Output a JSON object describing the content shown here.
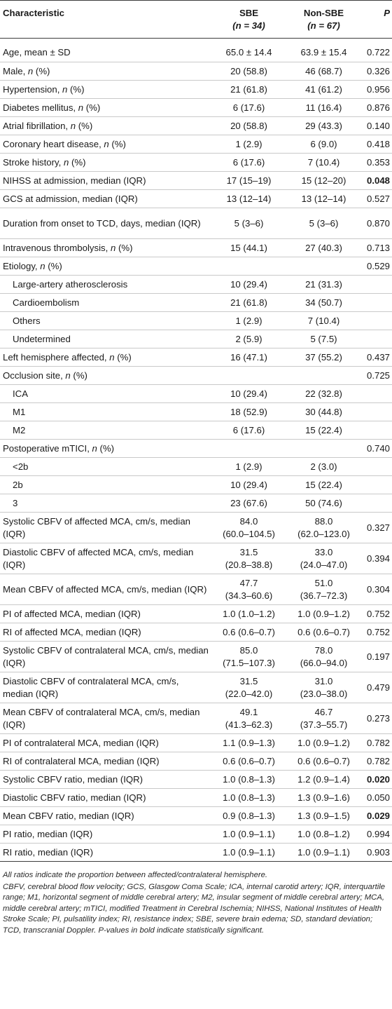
{
  "header": {
    "characteristic": "Characteristic",
    "sbe": "SBE",
    "sbe_n": "(n = 34)",
    "nonsbe": "Non-SBE",
    "nonsbe_n": "(n = 67)",
    "p": "P"
  },
  "rows": [
    {
      "label": "Age, mean ± SD",
      "sbe": "65.0 ± 14.4",
      "nonsbe": "63.9 ± 15.4",
      "p": "0.722"
    },
    {
      "label": "Male, n (%)",
      "sbe": "20 (58.8)",
      "nonsbe": "46 (68.7)",
      "p": "0.326"
    },
    {
      "label": "Hypertension, n (%)",
      "sbe": "21 (61.8)",
      "nonsbe": "41 (61.2)",
      "p": "0.956"
    },
    {
      "label": "Diabetes mellitus, n (%)",
      "sbe": "6 (17.6)",
      "nonsbe": "11 (16.4)",
      "p": "0.876"
    },
    {
      "label": "Atrial fibrillation, n (%)",
      "sbe": "20 (58.8)",
      "nonsbe": "29 (43.3)",
      "p": "0.140"
    },
    {
      "label": "Coronary heart disease, n (%)",
      "sbe": "1 (2.9)",
      "nonsbe": "6 (9.0)",
      "p": "0.418"
    },
    {
      "label": "Stroke history, n (%)",
      "sbe": "6 (17.6)",
      "nonsbe": "7 (10.4)",
      "p": "0.353"
    },
    {
      "label": "NIHSS at admission, median (IQR)",
      "sbe": "17 (15–19)",
      "nonsbe": "15 (12–20)",
      "p": "0.048"
    },
    {
      "label": "GCS at admission, median (IQR)",
      "sbe": "13 (12–14)",
      "nonsbe": "13 (12–14)",
      "p": "0.527"
    },
    {
      "label": "Duration from onset to TCD, days, median (IQR)",
      "sbe": "5 (3–6)",
      "nonsbe": "5 (3–6)",
      "p": "0.870"
    },
    {
      "label": "Intravenous thrombolysis, n (%)",
      "sbe": "15 (44.1)",
      "nonsbe": "27 (40.3)",
      "p": "0.713"
    },
    {
      "label": "Etiology, n (%)",
      "sbe": "",
      "nonsbe": "",
      "p": "0.529"
    },
    {
      "label": "Large-artery atherosclerosis",
      "sbe": "10 (29.4)",
      "nonsbe": "21 (31.3)",
      "p": ""
    },
    {
      "label": "Cardioembolism",
      "sbe": "21 (61.8)",
      "nonsbe": "34 (50.7)",
      "p": ""
    },
    {
      "label": "Others",
      "sbe": "1 (2.9)",
      "nonsbe": "7 (10.4)",
      "p": ""
    },
    {
      "label": "Undetermined",
      "sbe": "2 (5.9)",
      "nonsbe": "5 (7.5)",
      "p": ""
    },
    {
      "label": "Left hemisphere affected, n (%)",
      "sbe": "16 (47.1)",
      "nonsbe": "37 (55.2)",
      "p": "0.437"
    },
    {
      "label": "Occlusion site, n (%)",
      "sbe": "",
      "nonsbe": "",
      "p": "0.725"
    },
    {
      "label": "ICA",
      "sbe": "10 (29.4)",
      "nonsbe": "22 (32.8)",
      "p": ""
    },
    {
      "label": "M1",
      "sbe": "18 (52.9)",
      "nonsbe": "30 (44.8)",
      "p": ""
    },
    {
      "label": "M2",
      "sbe": "6 (17.6)",
      "nonsbe": "15 (22.4)",
      "p": ""
    },
    {
      "label": "Postoperative mTICI, n (%)",
      "sbe": "",
      "nonsbe": "",
      "p": "0.740"
    },
    {
      "label": "<2b",
      "sbe": "1 (2.9)",
      "nonsbe": "2 (3.0)",
      "p": ""
    },
    {
      "label": "2b",
      "sbe": "10 (29.4)",
      "nonsbe": "15 (22.4)",
      "p": ""
    },
    {
      "label": "3",
      "sbe": "23 (67.6)",
      "nonsbe": "50 (74.6)",
      "p": ""
    },
    {
      "label": "Systolic CBFV of affected MCA, cm/s, median (IQR)",
      "sbe_a": "84.0",
      "sbe_b": "(60.0–104.5)",
      "nonsbe_a": "88.0",
      "nonsbe_b": "(62.0–123.0)",
      "p": "0.327"
    },
    {
      "label": "Diastolic CBFV of affected MCA, cm/s, median (IQR)",
      "sbe_a": "31.5",
      "sbe_b": "(20.8–38.8)",
      "nonsbe_a": "33.0",
      "nonsbe_b": "(24.0–47.0)",
      "p": "0.394"
    },
    {
      "label": "Mean CBFV of affected MCA, cm/s, median (IQR)",
      "sbe_a": "47.7",
      "sbe_b": "(34.3–60.6)",
      "nonsbe_a": "51.0",
      "nonsbe_b": "(36.7–72.3)",
      "p": "0.304"
    },
    {
      "label": "PI of affected MCA, median (IQR)",
      "sbe": "1.0 (1.0–1.2)",
      "nonsbe": "1.0 (0.9–1.2)",
      "p": "0.752"
    },
    {
      "label": "RI of affected MCA, median (IQR)",
      "sbe": "0.6 (0.6–0.7)",
      "nonsbe": "0.6 (0.6–0.7)",
      "p": "0.752"
    },
    {
      "label": "Systolic CBFV of contralateral MCA, cm/s, median (IQR)",
      "sbe_a": "85.0",
      "sbe_b": "(71.5–107.3)",
      "nonsbe_a": "78.0",
      "nonsbe_b": "(66.0–94.0)",
      "p": "0.197"
    },
    {
      "label": "Diastolic CBFV of contralateral MCA, cm/s, median (IQR)",
      "sbe_a": "31.5",
      "sbe_b": "(22.0–42.0)",
      "nonsbe_a": "31.0",
      "nonsbe_b": "(23.0–38.0)",
      "p": "0.479"
    },
    {
      "label": "Mean CBFV of contralateral MCA, cm/s, median (IQR)",
      "sbe_a": "49.1",
      "sbe_b": "(41.3–62.3)",
      "nonsbe_a": "46.7",
      "nonsbe_b": "(37.3–55.7)",
      "p": "0.273"
    },
    {
      "label": "PI of contralateral MCA, median (IQR)",
      "sbe": "1.1 (0.9–1.3)",
      "nonsbe": "1.0 (0.9–1.2)",
      "p": "0.782"
    },
    {
      "label": "RI of contralateral MCA, median (IQR)",
      "sbe": "0.6 (0.6–0.7)",
      "nonsbe": "0.6 (0.6–0.7)",
      "p": "0.782"
    },
    {
      "label": "Systolic CBFV ratio, median (IQR)",
      "sbe": "1.0 (0.8–1.3)",
      "nonsbe": "1.2 (0.9–1.4)",
      "p": "0.020"
    },
    {
      "label": "Diastolic CBFV ratio, median (IQR)",
      "sbe": "1.0 (0.8–1.3)",
      "nonsbe": "1.3 (0.9–1.6)",
      "p": "0.050"
    },
    {
      "label": "Mean CBFV ratio, median (IQR)",
      "sbe": "0.9 (0.8–1.3)",
      "nonsbe": "1.3 (0.9–1.5)",
      "p": "0.029"
    },
    {
      "label": "PI ratio, median (IQR)",
      "sbe": "1.0 (0.9–1.1)",
      "nonsbe": "1.0 (0.8–1.2)",
      "p": "0.994"
    },
    {
      "label": "RI ratio, median (IQR)",
      "sbe": "1.0 (0.9–1.1)",
      "nonsbe": "1.0 (0.9–1.1)",
      "p": "0.903"
    }
  ],
  "footnote": {
    "line1": "All ratios indicate the proportion between affected/contralateral hemisphere.",
    "line2": "CBFV, cerebral blood flow velocity; GCS, Glasgow Coma Scale; ICA, internal carotid artery; IQR, interquartile range; M1, horizontal segment of middle cerebral artery; M2, insular segment of middle cerebral artery; MCA, middle cerebral artery; mTICI, modified Treatment in Cerebral Ischemia; NIHSS, National Institutes of Health Stroke Scale; PI, pulsatility index; RI, resistance index; SBE, severe brain edema; SD, standard deviation; TCD, transcranial Doppler. P-values in bold indicate statistically significant."
  }
}
